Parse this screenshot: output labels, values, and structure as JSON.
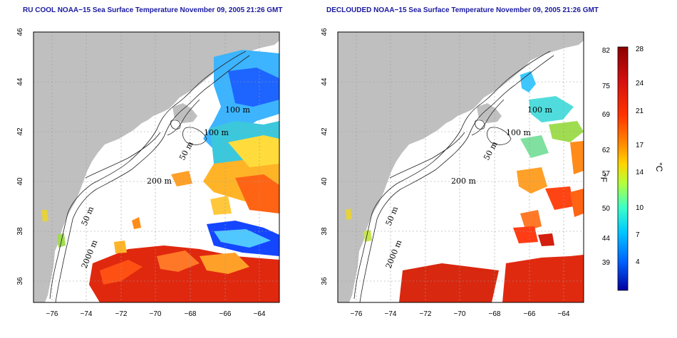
{
  "maps": [
    {
      "id": "left",
      "title": "RU COOL NOAA−15 Sea Surface Temperature November 09, 2005 21:26 GMT"
    },
    {
      "id": "right",
      "title": "DECLOUDED NOAA−15 Sea Surface Temperature November 09, 2005 21:26 GMT"
    }
  ],
  "axes": {
    "x_ticks": [
      "−76",
      "−74",
      "−72",
      "−70",
      "−68",
      "−66",
      "−64"
    ],
    "y_ticks": [
      "36",
      "38",
      "40",
      "42",
      "44",
      "46"
    ]
  },
  "contour_labels": {
    "c100a": "100 m",
    "c100b": "100 m",
    "c50a": "50 m",
    "c200": "200 m",
    "c50b": "50 m",
    "c2000": "2000 m"
  },
  "colorbar": {
    "unit_f": "°F",
    "unit_c": "°C",
    "f_labels": [
      "82",
      "75",
      "69",
      "62",
      "57",
      "50",
      "44",
      "39"
    ],
    "c_labels": [
      "28",
      "24",
      "21",
      "17",
      "14",
      "10",
      "7",
      "4"
    ],
    "colors": [
      "#8b0000",
      "#d41010",
      "#ff3300",
      "#ff8c00",
      "#ffd400",
      "#b4ff3c",
      "#3cffc8",
      "#00c8ff",
      "#0064ff",
      "#0000a0"
    ]
  },
  "colors": {
    "land": "#bfbfbf",
    "title": "#1a1aa0",
    "sst_warm": "#e02a10",
    "sst_orange": "#ff8c1a",
    "sst_cool": "#3cc8ff",
    "sst_cold": "#1446ff"
  }
}
